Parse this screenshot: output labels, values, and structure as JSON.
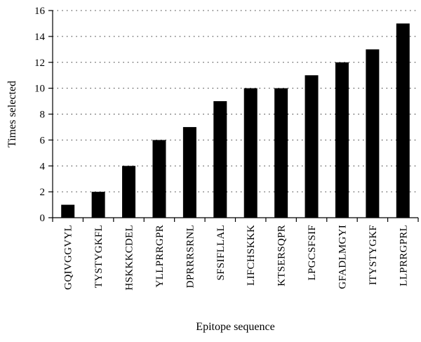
{
  "chart_data": {
    "type": "bar",
    "xlabel": "Epitope sequence",
    "ylabel": "Times selected",
    "categories": [
      "GQIVGGVYL",
      "TYSTYGKFL",
      "HSKKKCDEL",
      "YLLPRRGPR",
      "DPRRRSRNL",
      "SFSIFLLAL",
      "LIFCHSKKK",
      "KTSERSQPR",
      "LPGCSFSIF",
      "GFADLMGYI",
      "ITYSTYGKF",
      "LLPRRGPRL"
    ],
    "values": [
      1,
      2,
      4,
      6,
      7,
      9,
      10,
      10,
      11,
      12,
      13,
      15
    ],
    "ylim": [
      0,
      16
    ],
    "yticks": [
      0,
      2,
      4,
      6,
      8,
      10,
      12,
      14,
      16
    ],
    "grid": "horizontal dotted",
    "bar_color": "#000000"
  }
}
